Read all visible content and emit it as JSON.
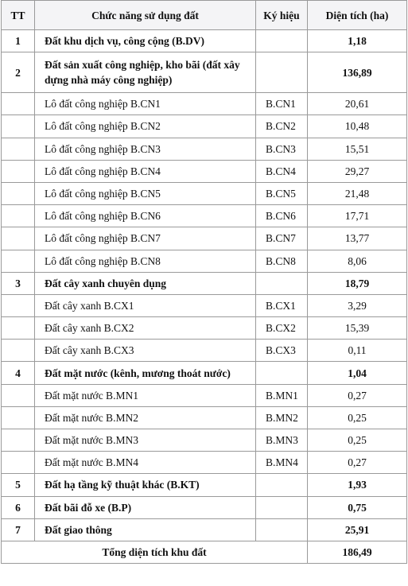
{
  "table": {
    "header": [
      "TT",
      "Chức năng sử dụng đất",
      "Ký hiệu",
      "Diện tích (ha)"
    ],
    "rows": [
      {
        "tt": "1",
        "name": "Đất khu dịch vụ, công cộng (B.DV)",
        "area": "1,18"
      },
      {
        "tt": "2",
        "name": "Đất sản xuất công nghiệp, kho bãi (đất xây dựng nhà máy công nghiệp)",
        "area": "136,89"
      },
      {
        "name": "Lô đất công nghiệp B.CN1",
        "symbol": "B.CN1",
        "area": "20,61"
      },
      {
        "name": "Lô đất công nghiệp B.CN2",
        "symbol": "B.CN2",
        "area": "10,48"
      },
      {
        "name": "Lô đất công nghiệp B.CN3",
        "symbol": "B.CN3",
        "area": "15,51"
      },
      {
        "name": "Lô đất công nghiệp B.CN4",
        "symbol": "B.CN4",
        "area": "29,27"
      },
      {
        "name": "Lô đất công nghiệp B.CN5",
        "symbol": "B.CN5",
        "area": "21,48"
      },
      {
        "name": "Lô đất công nghiệp B.CN6",
        "symbol": "B.CN6",
        "area": "17,71"
      },
      {
        "name": "Lô đất công nghiệp B.CN7",
        "symbol": "B.CN7",
        "area": "13,77"
      },
      {
        "name": "Lô đất công nghiệp B.CN8",
        "symbol": "B.CN8",
        "area": "8,06"
      },
      {
        "tt": "3",
        "name": "Đất cây xanh chuyên dụng",
        "area": "18,79"
      },
      {
        "name": "Đất cây xanh B.CX1",
        "symbol": "B.CX1",
        "area": "3,29"
      },
      {
        "name": "Đất cây xanh B.CX2",
        "symbol": "B.CX2",
        "area": "15,39"
      },
      {
        "name": "Đất cây xanh B.CX3",
        "symbol": "B.CX3",
        "area": "0,11"
      },
      {
        "tt": "4",
        "name": "Đất mặt nước (kênh, mương thoát nước)",
        "area": "1,04"
      },
      {
        "name": "Đất mặt nước B.MN1",
        "symbol": "B.MN1",
        "area": "0,27"
      },
      {
        "name": "Đất mặt nước B.MN2",
        "symbol": "B.MN2",
        "area": "0,25"
      },
      {
        "name": "Đất mặt nước B.MN3",
        "symbol": "B.MN3",
        "area": "0,25"
      },
      {
        "name": "Đất mặt nước B.MN4",
        "symbol": "B.MN4",
        "area": "0,27"
      },
      {
        "tt": "5",
        "name": "Đất hạ tầng kỹ thuật khác (B.KT)",
        "area": "1,93"
      },
      {
        "tt": "6",
        "name": "Đất bãi đỗ xe (B.P)",
        "area": "0,75"
      },
      {
        "tt": "7",
        "name": "Đất giao thông",
        "area": "25,91"
      }
    ],
    "total": {
      "name": "Tổng diện tích khu đất",
      "area": "186,49"
    }
  }
}
